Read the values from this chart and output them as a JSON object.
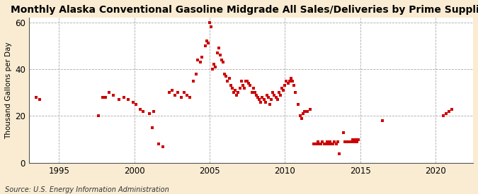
{
  "title": "Monthly Alaska Conventional Gasoline Midgrade All Sales/Deliveries by Prime Supplier",
  "ylabel": "Thousand Gallons per Day",
  "source": "Source: U.S. Energy Information Administration",
  "fig_background_color": "#faecd2",
  "plot_background_color": "#ffffff",
  "marker_color": "#cc0000",
  "marker_size": 9,
  "xlim": [
    1993.0,
    2022.5
  ],
  "ylim": [
    0,
    62
  ],
  "yticks": [
    0,
    20,
    40,
    60
  ],
  "xticks": [
    1995,
    2000,
    2005,
    2010,
    2015,
    2020
  ],
  "title_fontsize": 10,
  "data_points": [
    [
      1993.5,
      28
    ],
    [
      1993.7,
      27
    ],
    [
      1997.6,
      20
    ],
    [
      1997.9,
      28
    ],
    [
      1998.1,
      28
    ],
    [
      1998.3,
      30
    ],
    [
      1998.6,
      29
    ],
    [
      1999.0,
      27
    ],
    [
      1999.3,
      28
    ],
    [
      1999.6,
      27
    ],
    [
      1999.9,
      26
    ],
    [
      2000.1,
      25
    ],
    [
      2000.4,
      23
    ],
    [
      2000.6,
      22
    ],
    [
      2001.0,
      21
    ],
    [
      2001.2,
      15
    ],
    [
      2001.3,
      22
    ],
    [
      2001.6,
      8
    ],
    [
      2001.9,
      7
    ],
    [
      2002.3,
      30
    ],
    [
      2002.5,
      31
    ],
    [
      2002.7,
      29
    ],
    [
      2002.9,
      30
    ],
    [
      2003.1,
      28
    ],
    [
      2003.3,
      30
    ],
    [
      2003.5,
      29
    ],
    [
      2003.7,
      28
    ],
    [
      2003.9,
      35
    ],
    [
      2004.1,
      38
    ],
    [
      2004.2,
      44
    ],
    [
      2004.4,
      43
    ],
    [
      2004.5,
      45
    ],
    [
      2004.7,
      50
    ],
    [
      2004.8,
      52
    ],
    [
      2004.9,
      51
    ],
    [
      2005.0,
      60
    ],
    [
      2005.1,
      58
    ],
    [
      2005.2,
      40
    ],
    [
      2005.3,
      42
    ],
    [
      2005.4,
      41
    ],
    [
      2005.5,
      47
    ],
    [
      2005.6,
      49
    ],
    [
      2005.7,
      46
    ],
    [
      2005.8,
      44
    ],
    [
      2005.9,
      43
    ],
    [
      2006.0,
      38
    ],
    [
      2006.1,
      37
    ],
    [
      2006.2,
      35
    ],
    [
      2006.3,
      36
    ],
    [
      2006.4,
      33
    ],
    [
      2006.5,
      32
    ],
    [
      2006.6,
      30
    ],
    [
      2006.7,
      31
    ],
    [
      2006.8,
      29
    ],
    [
      2006.9,
      30
    ],
    [
      2007.0,
      32
    ],
    [
      2007.1,
      35
    ],
    [
      2007.2,
      33
    ],
    [
      2007.3,
      32
    ],
    [
      2007.4,
      35
    ],
    [
      2007.5,
      35
    ],
    [
      2007.6,
      34
    ],
    [
      2007.7,
      33
    ],
    [
      2007.8,
      30
    ],
    [
      2007.9,
      32
    ],
    [
      2008.0,
      30
    ],
    [
      2008.1,
      29
    ],
    [
      2008.2,
      28
    ],
    [
      2008.3,
      27
    ],
    [
      2008.4,
      26
    ],
    [
      2008.5,
      28
    ],
    [
      2008.6,
      27
    ],
    [
      2008.7,
      26
    ],
    [
      2008.8,
      29
    ],
    [
      2008.9,
      28
    ],
    [
      2009.0,
      25
    ],
    [
      2009.1,
      27
    ],
    [
      2009.2,
      30
    ],
    [
      2009.3,
      29
    ],
    [
      2009.4,
      28
    ],
    [
      2009.5,
      27
    ],
    [
      2009.6,
      30
    ],
    [
      2009.7,
      29
    ],
    [
      2009.8,
      32
    ],
    [
      2009.9,
      31
    ],
    [
      2010.0,
      33
    ],
    [
      2010.1,
      35
    ],
    [
      2010.2,
      34
    ],
    [
      2010.3,
      35
    ],
    [
      2010.4,
      36
    ],
    [
      2010.5,
      35
    ],
    [
      2010.6,
      33
    ],
    [
      2010.7,
      30
    ],
    [
      2010.9,
      25
    ],
    [
      2011.0,
      20
    ],
    [
      2011.1,
      19
    ],
    [
      2011.2,
      21
    ],
    [
      2011.3,
      22
    ],
    [
      2011.5,
      22
    ],
    [
      2011.7,
      23
    ],
    [
      2011.9,
      8
    ],
    [
      2012.0,
      8
    ],
    [
      2012.1,
      8
    ],
    [
      2012.2,
      9
    ],
    [
      2012.3,
      8
    ],
    [
      2012.4,
      8
    ],
    [
      2012.5,
      9
    ],
    [
      2012.6,
      8
    ],
    [
      2012.7,
      8
    ],
    [
      2012.8,
      9
    ],
    [
      2012.9,
      8
    ],
    [
      2013.0,
      9
    ],
    [
      2013.1,
      8
    ],
    [
      2013.2,
      8
    ],
    [
      2013.3,
      9
    ],
    [
      2013.4,
      8
    ],
    [
      2013.5,
      9
    ],
    [
      2013.6,
      4
    ],
    [
      2013.9,
      13
    ],
    [
      2014.0,
      9
    ],
    [
      2014.1,
      9
    ],
    [
      2014.2,
      9
    ],
    [
      2014.3,
      9
    ],
    [
      2014.4,
      9
    ],
    [
      2014.5,
      10
    ],
    [
      2014.6,
      9
    ],
    [
      2014.7,
      10
    ],
    [
      2014.8,
      9
    ],
    [
      2014.9,
      10
    ],
    [
      2016.5,
      18
    ],
    [
      2020.5,
      20
    ],
    [
      2020.7,
      21
    ],
    [
      2020.9,
      22
    ],
    [
      2021.1,
      23
    ]
  ]
}
